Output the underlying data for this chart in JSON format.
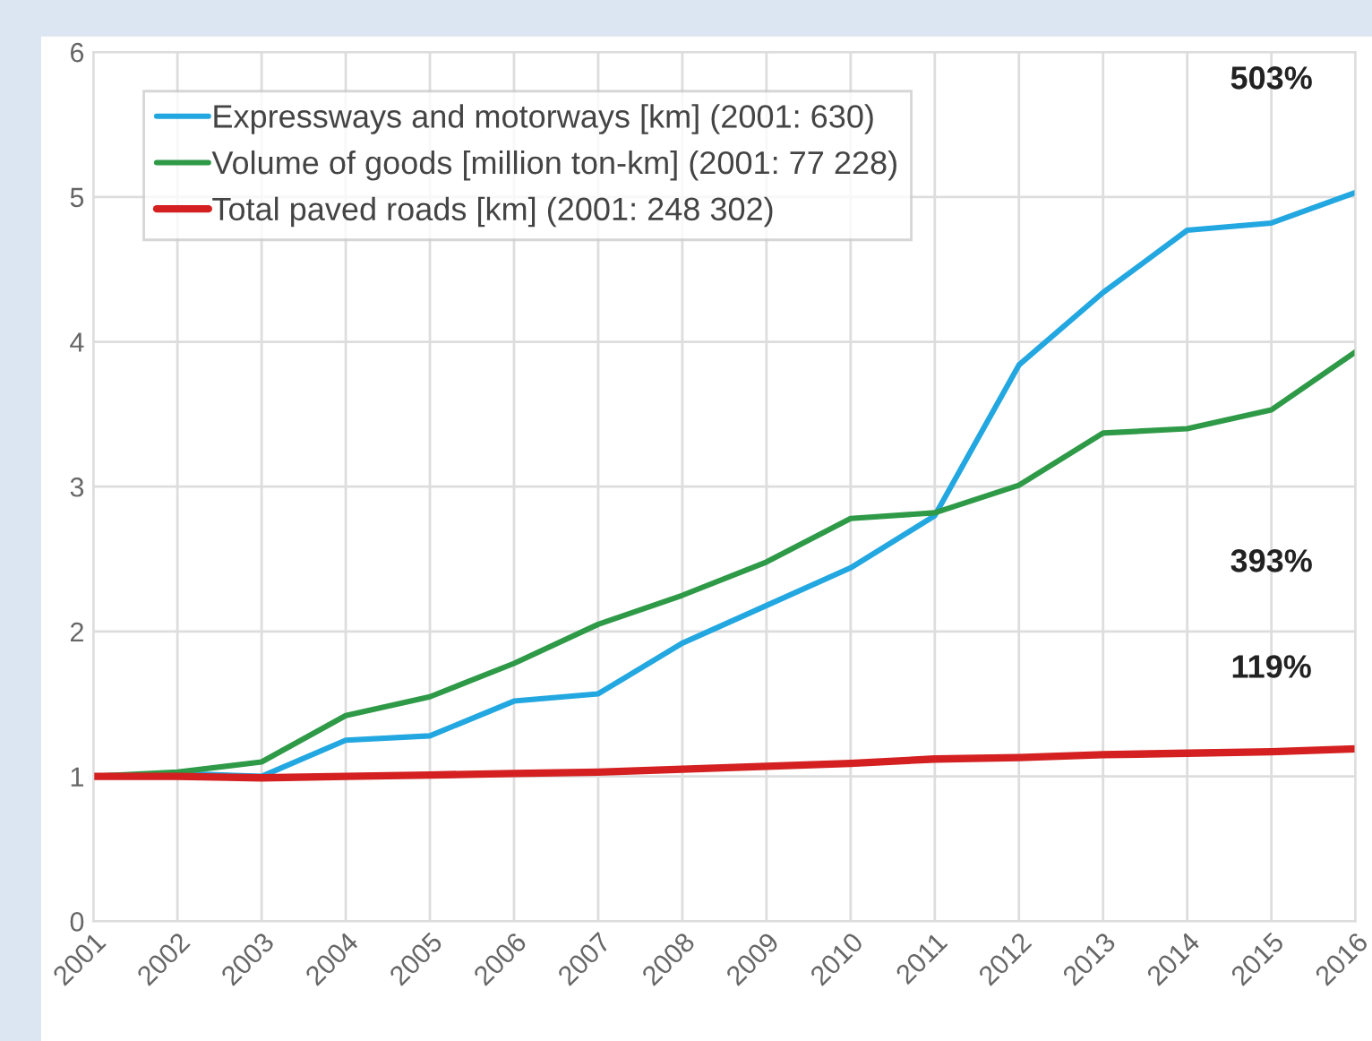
{
  "chart_data": {
    "type": "line",
    "x": [
      2001,
      2002,
      2003,
      2004,
      2005,
      2006,
      2007,
      2008,
      2009,
      2010,
      2011,
      2012,
      2013,
      2014,
      2015,
      2016
    ],
    "series": [
      {
        "name": "Expressways and motorways [km] (2001: 630)",
        "color": "#22a7e0",
        "values": [
          1,
          1.02,
          1.0,
          1.25,
          1.28,
          1.52,
          1.57,
          1.92,
          2.18,
          2.44,
          2.8,
          3.84,
          4.34,
          4.77,
          4.82,
          5.03
        ]
      },
      {
        "name": "Volume of goods [million ton-km] (2001: 77 228)",
        "color": "#2e9a47",
        "values": [
          1,
          1.03,
          1.1,
          1.42,
          1.55,
          1.78,
          2.05,
          2.25,
          2.48,
          2.78,
          2.82,
          3.01,
          3.37,
          3.4,
          3.53,
          3.93
        ]
      },
      {
        "name": "Total paved roads [km] (2001: 248 302)",
        "color": "#d42020",
        "values": [
          1,
          1.0,
          0.99,
          1.0,
          1.01,
          1.02,
          1.03,
          1.05,
          1.07,
          1.09,
          1.12,
          1.13,
          1.15,
          1.16,
          1.17,
          1.19
        ]
      }
    ],
    "xlim": [
      2001,
      2016
    ],
    "xticks": [
      2001,
      2002,
      2003,
      2004,
      2005,
      2006,
      2007,
      2008,
      2009,
      2010,
      2011,
      2012,
      2013,
      2014,
      2015,
      2016
    ],
    "ylim": [
      0,
      6
    ],
    "yticks": [
      0,
      1,
      2,
      3,
      4,
      5,
      6
    ],
    "grid": true,
    "legend": "top left",
    "line_style": "solid",
    "marker": "none",
    "annotations": [
      "503%",
      "393%",
      "119%"
    ]
  }
}
